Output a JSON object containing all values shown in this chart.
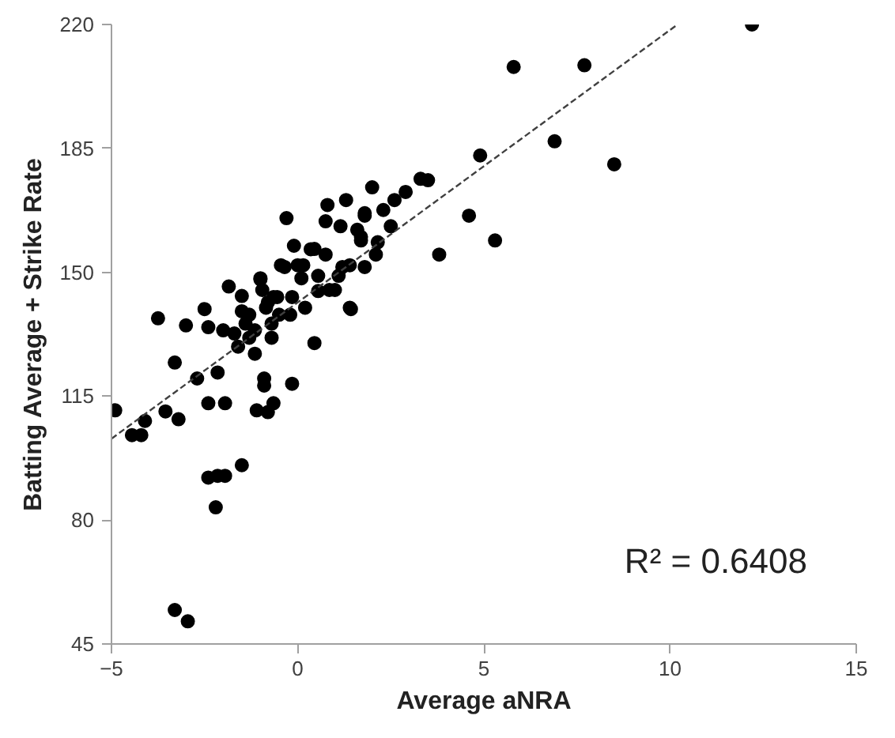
{
  "chart_data": {
    "type": "scatter",
    "xlabel": "Average aNRA",
    "ylabel": "Batting Average + Strike Rate",
    "xlim": [
      -5,
      15
    ],
    "xticks": [
      -5,
      0,
      5,
      10,
      15
    ],
    "ylim": [
      45,
      220
    ],
    "yticks": [
      45,
      80,
      115,
      150,
      185,
      220
    ],
    "grid": false,
    "marker": "circle",
    "annotations": [
      "R² = 0.6408"
    ],
    "series": [
      {
        "color": "#000000",
        "x": [
          12.2,
          5.8,
          7.7,
          6.9,
          8.5,
          4.9,
          4.6,
          5.3,
          3.8,
          3.5,
          -4.9,
          -4.45,
          -4.2,
          -4.1,
          -3.55,
          -3.2,
          -2.7,
          -2.15,
          -2.4,
          -1.95,
          -2.4,
          -1.95,
          -2.15,
          -1.5,
          -2.2,
          -3.3,
          -2.95,
          -1.1,
          -0.8,
          -0.65,
          -0.9,
          -0.9,
          -0.15,
          -3.75,
          -3.3,
          -3.0,
          -2.5,
          -2.4,
          -1.85,
          -1.5,
          -2.0,
          -1.7,
          -1.5,
          -1.4,
          -1.6,
          -1.15,
          -1.3,
          -1.0,
          -0.95,
          -0.85,
          -0.7,
          -0.7,
          -0.55,
          -0.3,
          -0.35,
          -0.15,
          -0.1,
          -0.2,
          0.2,
          0.35,
          0.45,
          0.1,
          0.55,
          0.75,
          0.8,
          0.75,
          1.15,
          1.3,
          0.85,
          0.55,
          1.4,
          1.2,
          1.1,
          2.0,
          1.8,
          1.6,
          1.8,
          1.7,
          -1.3,
          -0.8,
          -0.5,
          -1.15,
          0.0,
          3.3,
          2.9,
          2.6,
          2.3,
          1.8,
          2.5,
          2.15,
          1.7,
          2.1,
          1.4,
          0.45,
          0.15,
          1.43,
          -1.0,
          1.0,
          -0.45,
          -0.65
        ],
        "values": [
          220,
          208,
          208.5,
          187,
          180.5,
          183,
          166,
          159,
          155,
          176,
          111,
          104,
          104,
          108,
          110.7,
          108.5,
          120,
          121.7,
          113,
          113,
          92,
          92.5,
          92.5,
          95.5,
          83.6,
          54.6,
          51.4,
          111,
          110.5,
          113,
          120,
          118,
          118.5,
          137,
          124.5,
          135,
          139.6,
          134.5,
          146,
          143.3,
          133.6,
          132.7,
          139,
          135.5,
          129,
          127,
          131.5,
          148,
          145,
          140,
          135.5,
          131.5,
          143,
          165.3,
          151.5,
          143,
          157.5,
          138,
          140,
          156.5,
          130,
          148.3,
          149,
          155,
          169,
          164.4,
          163,
          170.4,
          145,
          144.7,
          140,
          151.5,
          149,
          174,
          166,
          162,
          151.5,
          159,
          138,
          141.5,
          138,
          133.6,
          152,
          176.4,
          172.7,
          170.4,
          167.6,
          166.7,
          163,
          158.5,
          160,
          155,
          152,
          156.6,
          152,
          139.6,
          148.3,
          145,
          152,
          143
        ]
      },
      {
        "type": "line",
        "color": "#404040",
        "line_style": "dashed",
        "marker": "none",
        "x": [
          -5,
          10.2
        ],
        "values": [
          103,
          220
        ]
      }
    ]
  }
}
